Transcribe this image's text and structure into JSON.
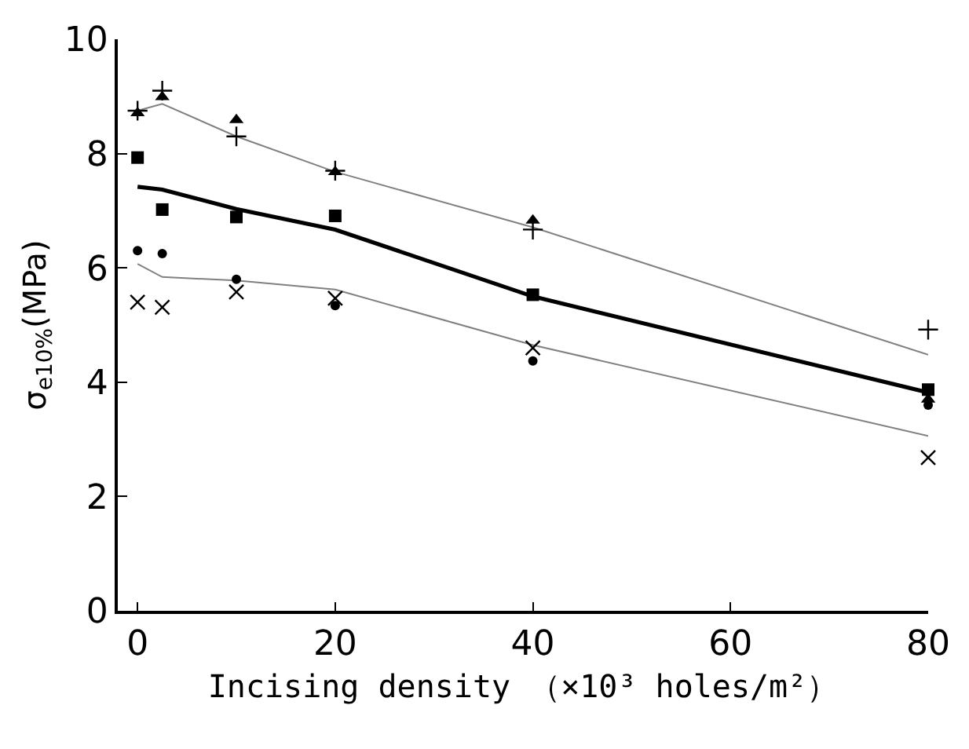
{
  "chart_data": {
    "type": "scatter",
    "xlabel": "Incising density （×10³ holes/m²）",
    "ylabel": "σ$_{e10%}$(MPa)",
    "x": [
      0,
      2.5,
      10,
      20,
      40,
      80
    ],
    "series": [
      {
        "marker": "triangle",
        "color": "#000000",
        "values": [
          8.71,
          8.99,
          8.59,
          7.68,
          6.83,
          3.7
        ]
      },
      {
        "marker": "cross",
        "color": "#000000",
        "values": [
          8.75,
          9.1,
          8.3,
          7.7,
          6.67,
          4.92
        ]
      },
      {
        "marker": "square",
        "color": "#000000",
        "values": [
          7.93,
          7.02,
          6.89,
          6.91,
          5.53,
          3.87
        ]
      },
      {
        "marker": "circle",
        "color": "#000000",
        "values": [
          6.3,
          6.25,
          5.8,
          5.34,
          4.37,
          3.6
        ]
      },
      {
        "marker": "x",
        "color": "#000000",
        "values": [
          5.4,
          5.31,
          5.58,
          5.47,
          4.6,
          2.68
        ]
      },
      {
        "type": "line",
        "marker": "none",
        "line_style": "solid",
        "color": "#000000",
        "values": [
          7.42,
          7.37,
          7.03,
          6.67,
          5.5,
          3.82
        ]
      },
      {
        "type": "line",
        "marker": "none",
        "line_style": "solid",
        "color": "#808080",
        "values": [
          8.75,
          8.87,
          8.3,
          7.68,
          6.71,
          4.48
        ]
      },
      {
        "type": "line",
        "marker": "none",
        "line_style": "solid",
        "color": "#808080",
        "values": [
          6.07,
          5.84,
          5.78,
          5.62,
          4.65,
          3.06
        ]
      }
    ],
    "xlim": [
      -2,
      80
    ],
    "xticks": [
      0,
      20,
      40,
      60,
      80
    ],
    "ylim": [
      0,
      10
    ],
    "yticks": [
      0,
      2,
      4,
      6,
      8,
      10
    ],
    "grid": false
  }
}
